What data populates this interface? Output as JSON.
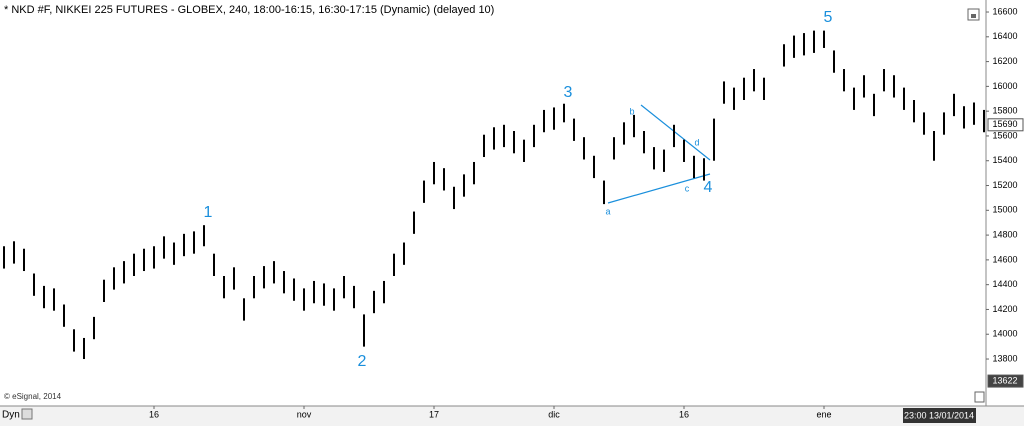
{
  "chart_data": {
    "type": "ohlc",
    "title": "* NKD #F, NIKKEI 225 FUTURES - GLOBEX, 240, 18:00-16:15, 16:30-17:15 (Dynamic) (delayed 10)",
    "credit": "© eSignal, 2014",
    "mode": "Dyn",
    "cursor_time": "23:00 13/01/2014",
    "color": "#000000",
    "annotation_color": "#1a8fdc",
    "annotations": [
      "1",
      "2",
      "3",
      "4",
      "5",
      "a",
      "b",
      "c",
      "d"
    ],
    "high": [
      14710,
      14750,
      14690,
      14490,
      14390,
      14370,
      14240,
      14040,
      13970,
      14140,
      14440,
      14540,
      14590,
      14650,
      14690,
      14710,
      14790,
      14740,
      14810,
      14830,
      14880,
      14650,
      14470,
      14540,
      14290,
      14470,
      14550,
      14590,
      14510,
      14450,
      14370,
      14430,
      14410,
      14370,
      14470,
      14390,
      14160,
      14350,
      14430,
      14650,
      14740,
      14990,
      15240,
      15390,
      15340,
      15190,
      15290,
      15390,
      15610,
      15670,
      15690,
      15640,
      15570,
      15690,
      15810,
      15830,
      15860,
      15740,
      15590,
      15440,
      15240,
      15590,
      15710,
      15770,
      15640,
      15510,
      15490,
      15690,
      15570,
      15440,
      15420,
      15740,
      16040,
      15990,
      16070,
      16140,
      16070,
      null,
      16340,
      16410,
      16430,
      16450,
      16450,
      16290,
      16140,
      15990,
      16090,
      15940,
      16140,
      16090,
      15990,
      15890,
      15790,
      15640,
      15790,
      15940,
      15840,
      15870,
      15810
    ],
    "low": [
      14530,
      14570,
      14510,
      14310,
      14210,
      14190,
      14060,
      13860,
      13800,
      13960,
      14260,
      14360,
      14410,
      14470,
      14510,
      14530,
      14610,
      14560,
      14630,
      14650,
      14710,
      14470,
      14290,
      14360,
      14110,
      14290,
      14370,
      14410,
      14330,
      14270,
      14190,
      14250,
      14230,
      14190,
      14290,
      14210,
      13900,
      14170,
      14250,
      14470,
      14560,
      14810,
      15060,
      15210,
      15160,
      15010,
      15110,
      15210,
      15430,
      15490,
      15510,
      15460,
      15390,
      15510,
      15630,
      15650,
      15710,
      15560,
      15410,
      15260,
      15050,
      15410,
      15530,
      15590,
      15460,
      15330,
      15310,
      15510,
      15390,
      15260,
      15240,
      15400,
      15860,
      15810,
      15890,
      15960,
      15890,
      null,
      16160,
      16230,
      16250,
      16270,
      16310,
      16110,
      15960,
      15810,
      15910,
      15760,
      15960,
      15910,
      15810,
      15710,
      15610,
      15400,
      15610,
      15760,
      15660,
      15690,
      15630
    ],
    "xlim": [
      -0.4,
      98.2
    ],
    "xticks": [
      {
        "value": 15,
        "label": "16"
      },
      {
        "value": 30,
        "label": "nov"
      },
      {
        "value": 43,
        "label": "17"
      },
      {
        "value": 55,
        "label": "dic"
      },
      {
        "value": 68,
        "label": "16"
      },
      {
        "value": 82,
        "label": "ene"
      }
    ],
    "ylim": [
      13429,
      16697
    ],
    "yticks": [
      13800,
      14000,
      14200,
      14400,
      14600,
      14800,
      15000,
      15200,
      15400,
      15600,
      15800,
      16000,
      16200,
      16400,
      16600
    ],
    "price_labels": [
      15690,
      13622
    ]
  }
}
